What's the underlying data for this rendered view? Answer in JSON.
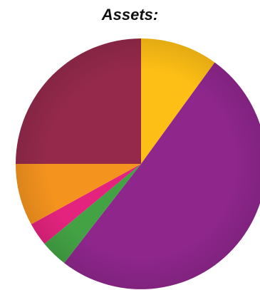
{
  "chart_data": {
    "type": "pie",
    "title": "Assets:",
    "start_angle_deg": 0,
    "direction": "clockwise",
    "slices": [
      {
        "value": 10.0,
        "color": "#FDBE15"
      },
      {
        "value": 50.5,
        "color": "#8E268C"
      },
      {
        "value": 3.5,
        "color": "#43A244"
      },
      {
        "value": 3.0,
        "color": "#E3237E"
      },
      {
        "value": 8.0,
        "color": "#F4931E"
      },
      {
        "value": 25.0,
        "color": "#94294B"
      }
    ]
  }
}
